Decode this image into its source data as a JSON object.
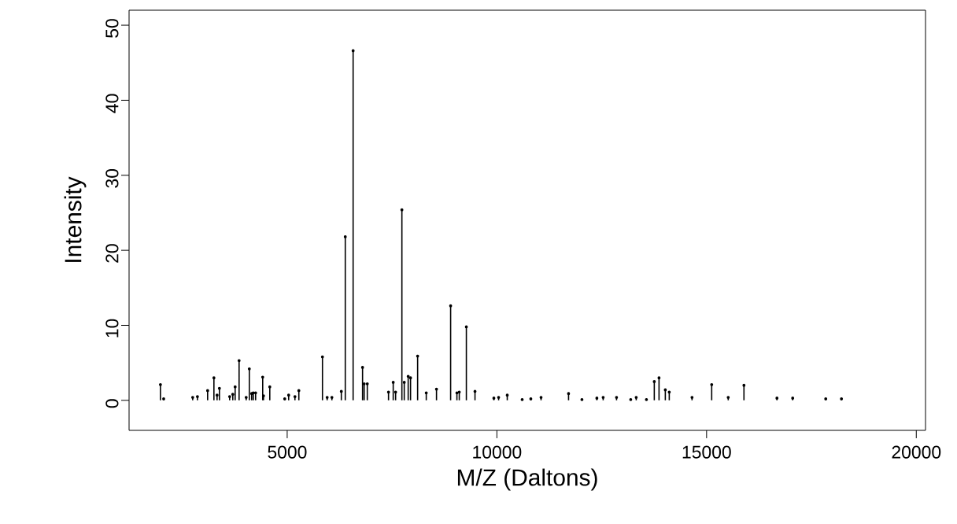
{
  "chart_data": {
    "type": "lollipop",
    "marker": "circle",
    "xlabel": "M/Z (Daltons)",
    "ylabel": "Intensity",
    "x": [
      1978,
      2055,
      2747,
      2860,
      3103,
      3253,
      3328,
      3384,
      3628,
      3703,
      3759,
      3853,
      4022,
      4097,
      4153,
      4191,
      4247,
      4416,
      4435,
      4585,
      4941,
      5035,
      5185,
      5278,
      5841,
      5953,
      6066,
      6291,
      6385,
      6572,
      6797,
      6835,
      6910,
      7416,
      7528,
      7585,
      7735,
      7791,
      7885,
      7941,
      8110,
      8316,
      8560,
      8897,
      9047,
      9103,
      9272,
      9478,
      9928,
      10041,
      10247,
      10603,
      10809,
      11053,
      11709,
      12028,
      12384,
      12534,
      12853,
      13191,
      13322,
      13566,
      13753,
      13866,
      14016,
      14110,
      14653,
      15122,
      15516,
      15891,
      16678,
      17053,
      17841,
      18216
    ],
    "values": [
      2.1,
      0.2,
      0.4,
      0.5,
      1.3,
      3.0,
      0.7,
      1.6,
      0.5,
      0.8,
      1.8,
      5.3,
      0.4,
      4.2,
      0.9,
      1.0,
      1.0,
      3.1,
      0.6,
      1.8,
      0.2,
      0.7,
      0.5,
      1.3,
      5.8,
      0.4,
      0.4,
      1.2,
      21.8,
      46.6,
      4.4,
      2.2,
      2.2,
      1.1,
      2.4,
      1.1,
      25.4,
      2.4,
      3.2,
      3.0,
      5.9,
      1.0,
      1.5,
      12.6,
      1.0,
      1.1,
      9.8,
      1.2,
      0.3,
      0.4,
      0.7,
      0.1,
      0.2,
      0.4,
      0.9,
      0.1,
      0.3,
      0.4,
      0.4,
      0.1,
      0.4,
      0.1,
      2.5,
      3.0,
      1.4,
      1.1,
      0.4,
      2.1,
      0.4,
      2.0,
      0.3,
      0.3,
      0.2,
      0.2
    ],
    "color": "#000000",
    "xlim": [
      1230,
      20220
    ],
    "ylim": [
      -4,
      52
    ],
    "xticks": [
      5000,
      10000,
      15000,
      20000
    ],
    "yticks": [
      0,
      10,
      20,
      30,
      40,
      50
    ],
    "grid": false
  }
}
